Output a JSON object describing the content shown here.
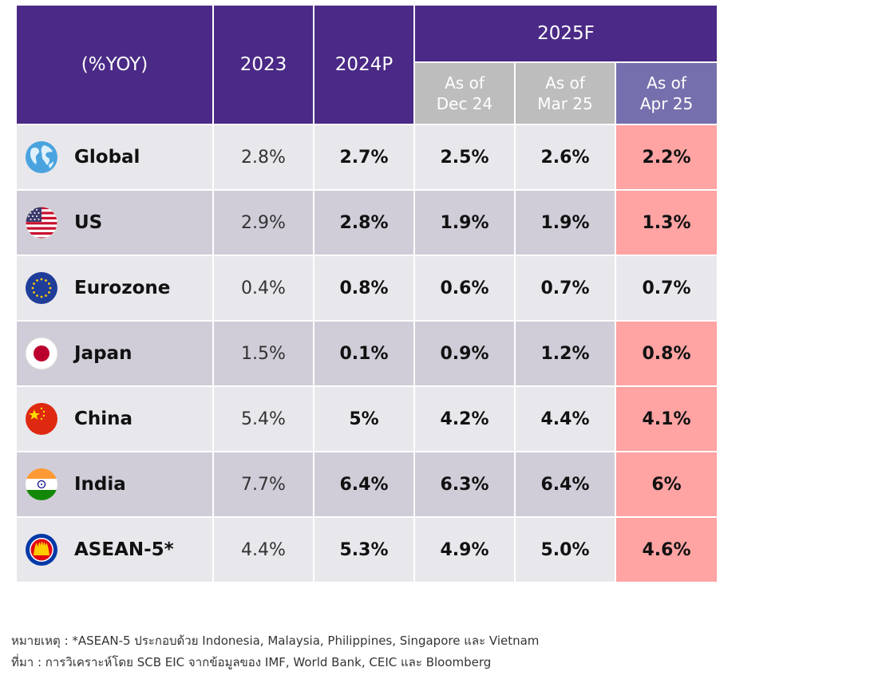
{
  "header": {
    "col_label": "(%YOY)",
    "y2023": "2023",
    "y2024": "2024P",
    "y2025": "2025F",
    "sub_dec_line1": "As of",
    "sub_dec_line2": "Dec 24",
    "sub_mar_line1": "As of",
    "sub_mar_line2": "Mar 25",
    "sub_apr_line1": "As of",
    "sub_apr_line2": "Apr 25"
  },
  "rows": [
    {
      "country": "Global",
      "flag": "globe-icon",
      "y2023": "2.8%",
      "y2024": "2.7%",
      "dec24": "2.5%",
      "mar25": "2.6%",
      "apr25": "2.2%",
      "apr_highlight": true
    },
    {
      "country": "US",
      "flag": "us-flag-icon",
      "y2023": "2.9%",
      "y2024": "2.8%",
      "dec24": "1.9%",
      "mar25": "1.9%",
      "apr25": "1.3%",
      "apr_highlight": true
    },
    {
      "country": "Eurozone",
      "flag": "eu-flag-icon",
      "y2023": "0.4%",
      "y2024": "0.8%",
      "dec24": "0.6%",
      "mar25": "0.7%",
      "apr25": "0.7%",
      "apr_highlight": false
    },
    {
      "country": "Japan",
      "flag": "japan-flag-icon",
      "y2023": "1.5%",
      "y2024": "0.1%",
      "dec24": "0.9%",
      "mar25": "1.2%",
      "apr25": "0.8%",
      "apr_highlight": true
    },
    {
      "country": "China",
      "flag": "china-flag-icon",
      "y2023": "5.4%",
      "y2024": "5%",
      "dec24": "4.2%",
      "mar25": "4.4%",
      "apr25": "4.1%",
      "apr_highlight": true
    },
    {
      "country": "India",
      "flag": "india-flag-icon",
      "y2023": "7.7%",
      "y2024": "6.4%",
      "dec24": "6.3%",
      "mar25": "6.4%",
      "apr25": "6%",
      "apr_highlight": true
    },
    {
      "country": "ASEAN-5*",
      "flag": "asean-flag-icon",
      "y2023": "4.4%",
      "y2024": "5.3%",
      "dec24": "4.9%",
      "mar25": "5.0%",
      "apr25": "4.6%",
      "apr_highlight": true
    }
  ],
  "notes": {
    "line1": "หมายเหตุ : *ASEAN-5 ประกอบด้วย Indonesia, Malaysia, Philippines, Singapore และ Vietnam",
    "line2": "ที่มา : การวิเคราะห์โดย SCB EIC จากข้อมูลของ IMF, World Bank, CEIC และ Bloomberg"
  },
  "colors": {
    "header_purple": "#4a2a86",
    "subheader_grey": "#bdbdbd",
    "subheader_highlight": "#7570ad",
    "row_light": "#e8e7ec",
    "row_dark": "#d0cdd8",
    "downgrade_highlight": "#ffa3a3"
  }
}
